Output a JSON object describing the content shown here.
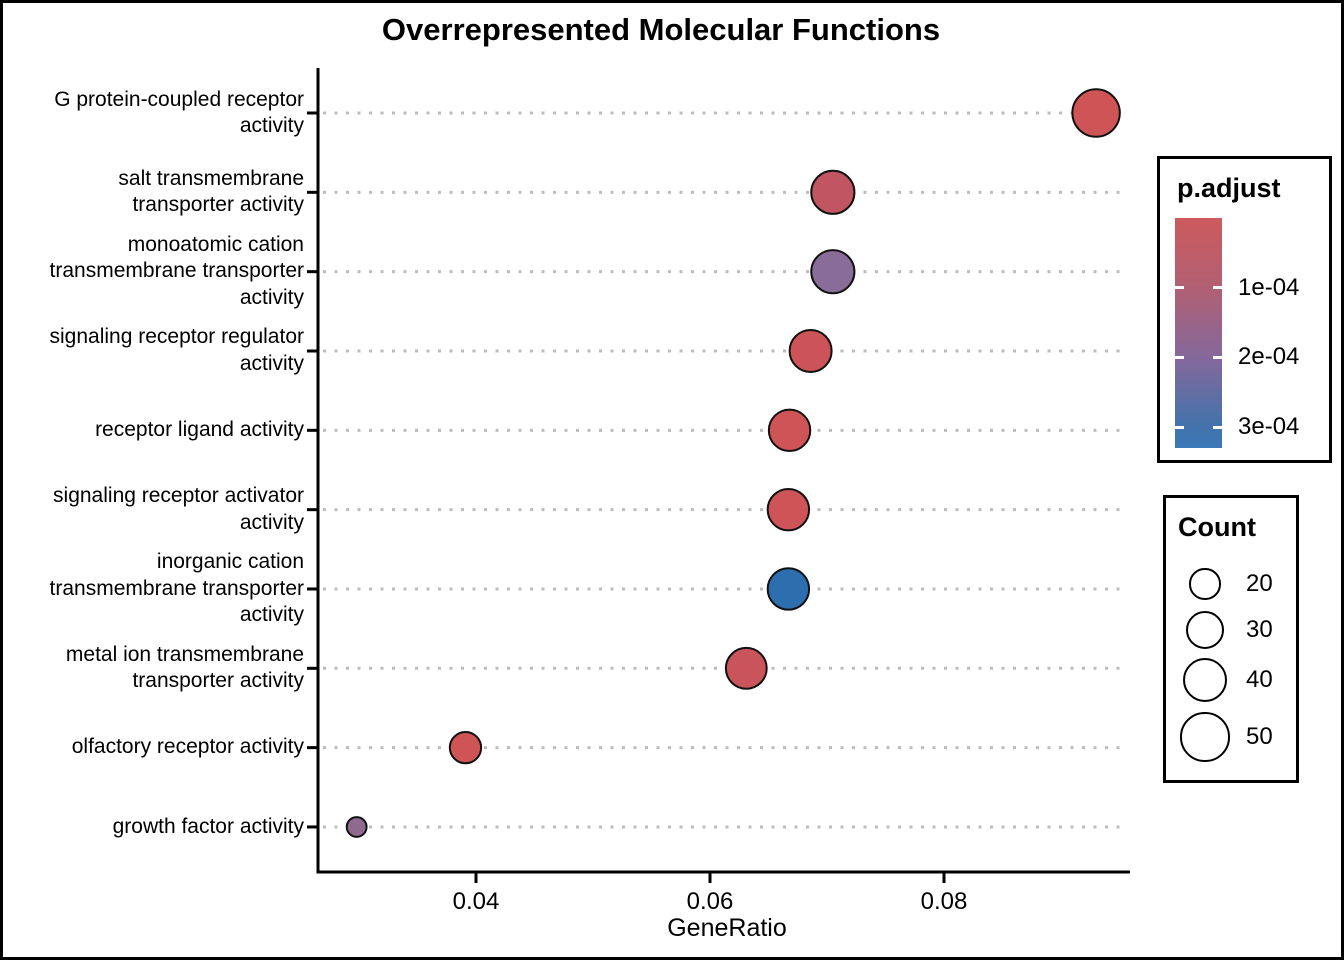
{
  "chart_data": {
    "type": "scatter",
    "subtype": "enrichment-dotplot",
    "title": "Overrepresented Molecular Functions",
    "xlabel": "GeneRatio",
    "x_axis": {
      "tick_labels": [
        "0.04",
        "0.06",
        "0.08"
      ],
      "tick_values": [
        0.04,
        0.06,
        0.08
      ],
      "range": [
        0.0265,
        0.0958
      ],
      "grid": "dotted-horizontal"
    },
    "points": [
      {
        "label": "G protein-coupled receptor activity",
        "label_lines": [
          "G protein-coupled receptor",
          "activity"
        ],
        "gene_ratio": 0.093,
        "count": 46,
        "p_adjust": 2e-05,
        "color": "#CF5456"
      },
      {
        "label": "salt transmembrane transporter activity",
        "label_lines": [
          "salt transmembrane",
          "transporter activity"
        ],
        "gene_ratio": 0.0705,
        "count": 38,
        "p_adjust": 8e-05,
        "color": "#C25562"
      },
      {
        "label": "monoatomic cation transmembrane transporter activity",
        "label_lines": [
          "monoatomic cation",
          "transmembrane transporter",
          "activity"
        ],
        "gene_ratio": 0.0705,
        "count": 38,
        "p_adjust": 0.00021,
        "color": "#8A6C99"
      },
      {
        "label": "signaling receptor regulator activity",
        "label_lines": [
          "signaling receptor regulator",
          "activity"
        ],
        "gene_ratio": 0.0686,
        "count": 36,
        "p_adjust": 4e-05,
        "color": "#CC5459"
      },
      {
        "label": "receptor ligand activity",
        "label_lines": [
          "receptor ligand activity"
        ],
        "gene_ratio": 0.0668,
        "count": 35,
        "p_adjust": 3e-05,
        "color": "#CE5457"
      },
      {
        "label": "signaling receptor activator activity",
        "label_lines": [
          "signaling receptor activator",
          "activity"
        ],
        "gene_ratio": 0.0667,
        "count": 35,
        "p_adjust": 3e-05,
        "color": "#CE5457"
      },
      {
        "label": "inorganic cation transmembrane transporter activity",
        "label_lines": [
          "inorganic cation",
          "transmembrane transporter",
          "activity"
        ],
        "gene_ratio": 0.0667,
        "count": 35,
        "p_adjust": 0.0003,
        "color": "#2D6EAE"
      },
      {
        "label": "metal ion transmembrane transporter activity",
        "label_lines": [
          "metal ion transmembrane",
          "transporter activity"
        ],
        "gene_ratio": 0.0631,
        "count": 34,
        "p_adjust": 5e-05,
        "color": "#C9545C"
      },
      {
        "label": "olfactory receptor activity",
        "label_lines": [
          "olfactory receptor activity"
        ],
        "gene_ratio": 0.0391,
        "count": 20,
        "p_adjust": 2e-05,
        "color": "#CF5456"
      },
      {
        "label": "growth factor activity",
        "label_lines": [
          "growth factor activity"
        ],
        "gene_ratio": 0.0298,
        "count": 8,
        "p_adjust": 0.00019,
        "color": "#8E6A8E"
      }
    ],
    "color_legend": {
      "title": "p.adjust",
      "tick_labels": [
        "1e-04",
        "2e-04",
        "3e-04"
      ],
      "tick_values": [
        0.0001,
        0.0002,
        0.0003
      ],
      "domain": [
        0,
        0.00033
      ],
      "gradient_stops": [
        {
          "offset": 0,
          "color": "#CD5A5D"
        },
        {
          "offset": 0.31,
          "color": "#B06074"
        },
        {
          "offset": 0.61,
          "color": "#84689B"
        },
        {
          "offset": 0.91,
          "color": "#4273AC"
        },
        {
          "offset": 1,
          "color": "#3A78B7"
        }
      ]
    },
    "size_legend": {
      "title": "Count",
      "values": [
        20,
        30,
        40,
        50
      ],
      "value_labels": [
        "20",
        "30",
        "40",
        "50"
      ]
    },
    "style": {
      "dot_stroke": "#111111",
      "grid_color": "#BDBDBD",
      "axis_color": "#000000",
      "background": "#FFFFFF"
    }
  }
}
